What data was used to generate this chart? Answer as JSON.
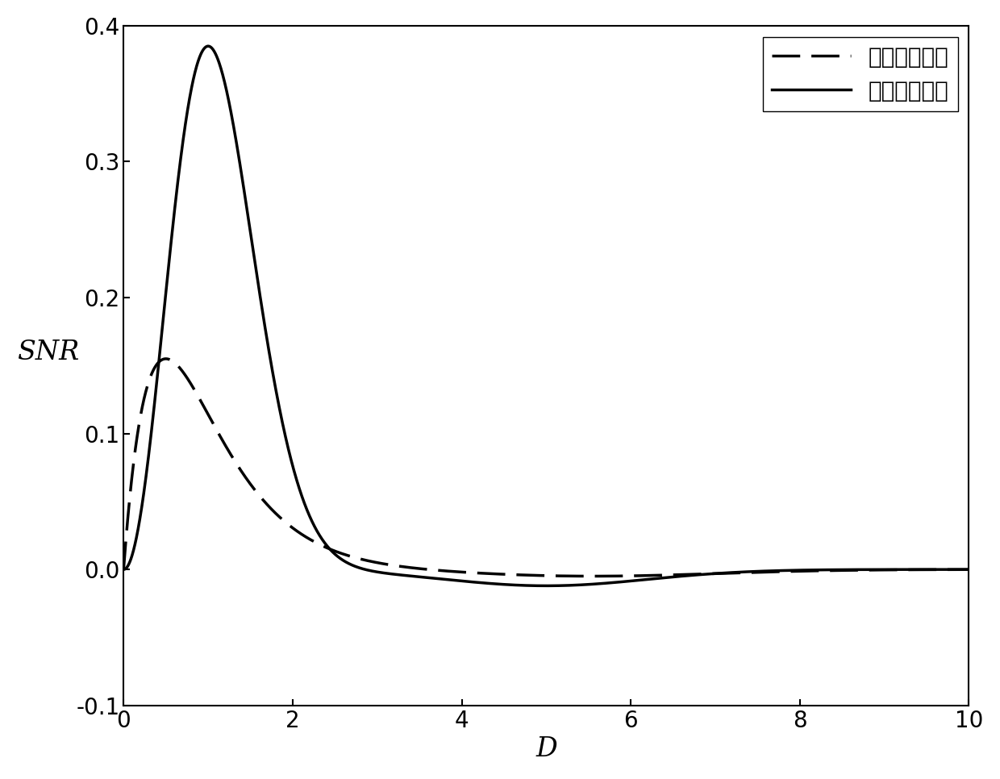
{
  "xlim": [
    0,
    10
  ],
  "ylim": [
    -0.1,
    0.4
  ],
  "xticks": [
    0,
    2,
    4,
    6,
    8,
    10
  ],
  "yticks": [
    -0.1,
    0.0,
    0.1,
    0.2,
    0.3,
    0.4
  ],
  "xlabel": "D",
  "ylabel": "SNR",
  "legend_labels": [
    "一阶随机共振",
    "二阶随机共振"
  ],
  "line_color": "#000000",
  "line_width": 2.5,
  "background_color": "#ffffff",
  "figsize": [
    12.4,
    9.66
  ],
  "dpi": 100
}
